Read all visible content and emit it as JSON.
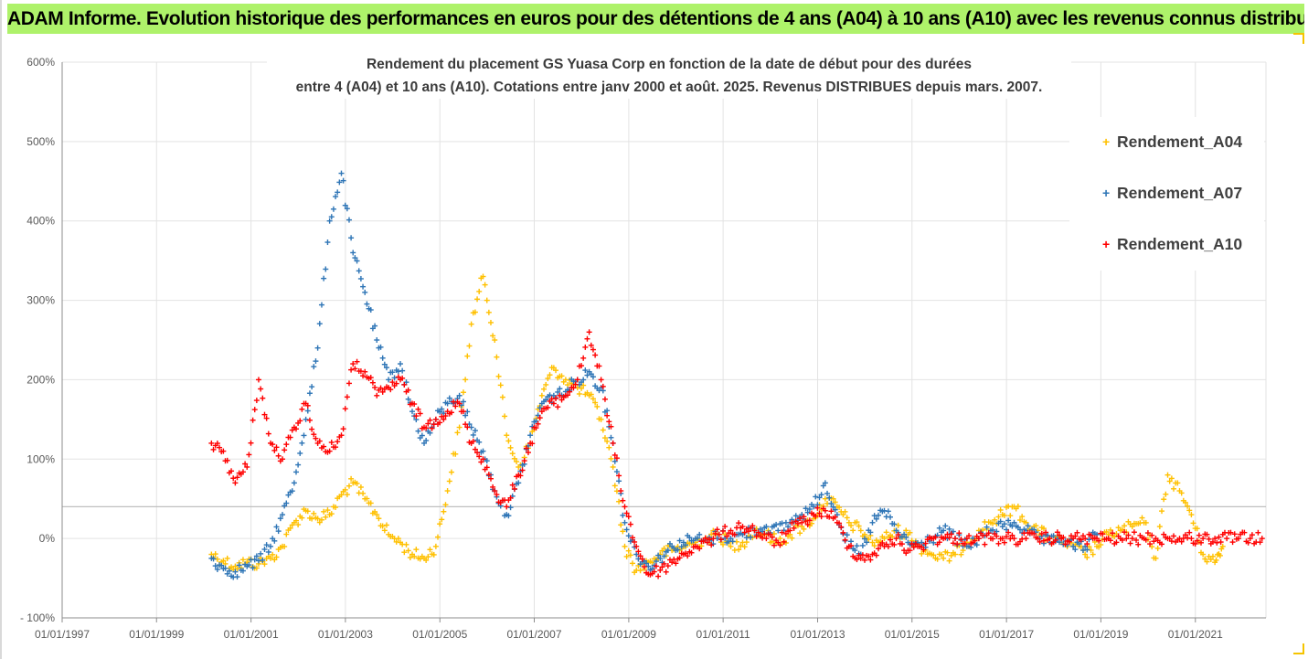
{
  "banner": {
    "text": "ADAM Informe. Evolution historique des performances en euros pour des détentions de 4 ans (A04) à 10 ans (A10) avec les revenus connus distribués"
  },
  "chart_data": {
    "type": "scatter",
    "title_line1": "Rendement du placement GS Yuasa Corp en fonction de la date de début pour des durées",
    "title_line2": "entre 4 (A04) et 10 ans (A10). Cotations entre janv 2000 et août. 2025. Revenus DISTRIBUES depuis mars. 2007.",
    "xlim": [
      "1997-01-01",
      "2022-07-01"
    ],
    "ylim": [
      -100,
      600
    ],
    "x_ticks": [
      "01/01/1997",
      "01/01/1999",
      "01/01/2001",
      "01/01/2003",
      "01/01/2005",
      "01/01/2007",
      "01/01/2009",
      "01/01/2011",
      "01/01/2013",
      "01/01/2015",
      "01/01/2017",
      "01/01/2019",
      "01/01/2021"
    ],
    "y_ticks": [
      {
        "value": 600,
        "label": "600%"
      },
      {
        "value": 500,
        "label": "500%"
      },
      {
        "value": 400,
        "label": "400%"
      },
      {
        "value": 300,
        "label": "300%"
      },
      {
        "value": 200,
        "label": "200%"
      },
      {
        "value": 100,
        "label": "100%"
      },
      {
        "value": 0,
        "label": "0%"
      },
      {
        "value": -100,
        "label": "- 100%"
      }
    ],
    "reference_line_value": 40,
    "grid": true,
    "legend_position": "right",
    "series": [
      {
        "name": "Rendement_A04",
        "color": "#ffc000",
        "x": [
          "2000-03-01",
          "2000-06-01",
          "2000-09-01",
          "2000-12-01",
          "2001-03-01",
          "2001-06-01",
          "2001-09-01",
          "2001-12-01",
          "2002-03-01",
          "2002-06-01",
          "2002-09-01",
          "2002-12-01",
          "2003-03-01",
          "2003-06-01",
          "2003-09-01",
          "2003-12-01",
          "2004-03-01",
          "2004-06-01",
          "2004-09-01",
          "2004-12-01",
          "2005-03-01",
          "2005-06-01",
          "2005-09-01",
          "2005-12-01",
          "2006-03-01",
          "2006-06-01",
          "2006-09-01",
          "2006-12-01",
          "2007-03-01",
          "2007-06-01",
          "2007-09-01",
          "2007-12-01",
          "2008-03-01",
          "2008-06-01",
          "2008-09-01",
          "2008-12-01",
          "2009-03-01",
          "2009-06-01",
          "2009-09-01",
          "2009-12-01",
          "2010-03-01",
          "2010-06-01",
          "2010-09-01",
          "2010-12-01",
          "2011-03-01",
          "2011-06-01",
          "2011-09-01",
          "2011-12-01",
          "2012-03-01",
          "2012-06-01",
          "2012-09-01",
          "2012-12-01",
          "2013-03-01",
          "2013-06-01",
          "2013-09-01",
          "2013-12-01",
          "2014-03-01",
          "2014-06-01",
          "2014-09-01",
          "2014-12-01",
          "2015-03-01",
          "2015-06-01",
          "2015-09-01",
          "2015-12-01",
          "2016-03-01",
          "2016-06-01",
          "2016-09-01",
          "2016-12-01",
          "2017-03-01",
          "2017-06-01",
          "2017-09-01",
          "2017-12-01",
          "2018-03-01",
          "2018-06-01",
          "2018-09-01",
          "2018-12-01",
          "2019-03-01",
          "2019-06-01",
          "2019-09-01",
          "2019-12-01",
          "2020-03-01",
          "2020-06-01",
          "2020-09-01",
          "2020-12-01",
          "2021-03-01",
          "2021-06-01",
          "2021-08-01"
        ],
        "y": [
          -20,
          -28,
          -35,
          -30,
          -32,
          -25,
          -10,
          20,
          35,
          25,
          30,
          55,
          70,
          50,
          30,
          5,
          -5,
          -20,
          -25,
          -10,
          60,
          140,
          270,
          330,
          250,
          130,
          90,
          120,
          180,
          215,
          200,
          190,
          180,
          150,
          90,
          -10,
          -40,
          -30,
          -20,
          -15,
          -10,
          -5,
          0,
          5,
          -10,
          -5,
          10,
          5,
          -5,
          5,
          15,
          25,
          50,
          40,
          20,
          10,
          -5,
          0,
          10,
          5,
          -10,
          -20,
          -25,
          -20,
          -5,
          10,
          20,
          30,
          40,
          20,
          10,
          0,
          -5,
          -10,
          -20,
          -10,
          5,
          10,
          15,
          20,
          -25,
          80,
          60,
          30,
          -20,
          -30,
          -10
        ]
      },
      {
        "name": "Rendement_A07",
        "color": "#2e75b6",
        "x": [
          "2000-03-01",
          "2000-06-01",
          "2000-09-01",
          "2000-12-01",
          "2001-03-01",
          "2001-06-01",
          "2001-09-01",
          "2001-12-01",
          "2002-03-01",
          "2002-06-01",
          "2002-09-01",
          "2002-12-01",
          "2003-03-01",
          "2003-06-01",
          "2003-09-01",
          "2003-12-01",
          "2004-03-01",
          "2004-06-01",
          "2004-09-01",
          "2004-12-01",
          "2005-03-01",
          "2005-06-01",
          "2005-09-01",
          "2005-12-01",
          "2006-03-01",
          "2006-06-01",
          "2006-09-01",
          "2006-12-01",
          "2007-03-01",
          "2007-06-01",
          "2007-09-01",
          "2007-12-01",
          "2008-03-01",
          "2008-06-01",
          "2008-09-01",
          "2008-12-01",
          "2009-03-01",
          "2009-06-01",
          "2009-09-01",
          "2009-12-01",
          "2010-03-01",
          "2010-06-01",
          "2010-09-01",
          "2010-12-01",
          "2011-03-01",
          "2011-06-01",
          "2011-09-01",
          "2011-12-01",
          "2012-03-01",
          "2012-06-01",
          "2012-09-01",
          "2012-12-01",
          "2013-03-01",
          "2013-06-01",
          "2013-09-01",
          "2013-12-01",
          "2014-03-01",
          "2014-06-01",
          "2014-09-01",
          "2014-12-01",
          "2015-03-01",
          "2015-06-01",
          "2015-09-01",
          "2015-12-01",
          "2016-03-01",
          "2016-06-01",
          "2016-09-01",
          "2016-12-01",
          "2017-03-01",
          "2017-06-01",
          "2017-09-01",
          "2017-12-01",
          "2018-03-01",
          "2018-06-01",
          "2018-09-01",
          "2018-12-01"
        ],
        "y": [
          -25,
          -38,
          -42,
          -35,
          -28,
          -10,
          30,
          70,
          150,
          240,
          400,
          460,
          360,
          310,
          250,
          200,
          220,
          160,
          120,
          150,
          170,
          180,
          140,
          110,
          60,
          30,
          70,
          130,
          170,
          180,
          185,
          200,
          210,
          190,
          120,
          20,
          -20,
          -35,
          -25,
          -10,
          -5,
          0,
          -5,
          5,
          0,
          5,
          10,
          15,
          10,
          20,
          30,
          40,
          70,
          30,
          -10,
          -20,
          20,
          35,
          10,
          -5,
          -10,
          0,
          10,
          0,
          -10,
          0,
          10,
          15,
          20,
          10,
          0,
          -5,
          0,
          -10,
          -10,
          5
        ]
      },
      {
        "name": "Rendement_A10",
        "color": "#ff0000",
        "x": [
          "2000-03-01",
          "2000-06-01",
          "2000-09-01",
          "2000-12-01",
          "2001-03-01",
          "2001-06-01",
          "2001-09-01",
          "2001-12-01",
          "2002-03-01",
          "2002-06-01",
          "2002-09-01",
          "2002-12-01",
          "2003-03-01",
          "2003-06-01",
          "2003-09-01",
          "2003-12-01",
          "2004-03-01",
          "2004-06-01",
          "2004-09-01",
          "2004-12-01",
          "2005-03-01",
          "2005-06-01",
          "2005-09-01",
          "2005-12-01",
          "2006-03-01",
          "2006-06-01",
          "2006-09-01",
          "2006-12-01",
          "2007-03-01",
          "2007-06-01",
          "2007-09-01",
          "2007-12-01",
          "2008-03-01",
          "2008-06-01",
          "2008-09-01",
          "2008-12-01",
          "2009-03-01",
          "2009-06-01",
          "2009-09-01",
          "2009-12-01",
          "2010-03-01",
          "2010-06-01",
          "2010-09-01",
          "2010-12-01",
          "2011-03-01",
          "2011-06-01",
          "2011-09-01",
          "2011-12-01",
          "2012-03-01",
          "2012-06-01",
          "2012-09-01",
          "2012-12-01",
          "2013-03-01",
          "2013-06-01",
          "2013-09-01",
          "2013-12-01",
          "2014-03-01",
          "2014-06-01",
          "2014-09-01",
          "2014-12-01",
          "2015-03-01",
          "2015-06-01",
          "2015-09-01",
          "2015-12-01",
          "2016-03-01",
          "2016-06-01",
          "2016-09-01",
          "2016-12-01",
          "2017-03-01",
          "2017-06-01",
          "2017-09-01",
          "2017-12-01",
          "2018-03-01",
          "2018-06-01",
          "2018-09-01",
          "2018-12-01",
          "2019-03-01",
          "2019-06-01",
          "2019-09-01",
          "2019-12-01",
          "2020-03-01",
          "2020-06-01",
          "2020-09-01",
          "2020-12-01",
          "2021-03-01",
          "2021-06-01",
          "2021-09-01",
          "2021-12-01",
          "2022-03-01",
          "2022-06-01"
        ],
        "y": [
          120,
          110,
          70,
          90,
          200,
          120,
          100,
          140,
          170,
          120,
          110,
          130,
          220,
          210,
          180,
          190,
          200,
          170,
          140,
          150,
          160,
          170,
          120,
          100,
          60,
          40,
          80,
          120,
          160,
          170,
          180,
          200,
          260,
          200,
          120,
          40,
          -10,
          -45,
          -40,
          -30,
          -20,
          -10,
          -5,
          5,
          10,
          15,
          10,
          0,
          -5,
          10,
          20,
          30,
          35,
          20,
          -10,
          -25,
          -20,
          -10,
          0,
          -15,
          -10,
          0,
          0,
          0,
          0,
          0,
          0,
          0,
          0,
          0,
          0,
          0,
          0,
          0,
          0,
          0,
          0,
          0,
          0,
          0,
          0,
          0,
          0,
          0,
          0,
          0,
          0,
          0,
          0,
          0
        ]
      }
    ]
  }
}
